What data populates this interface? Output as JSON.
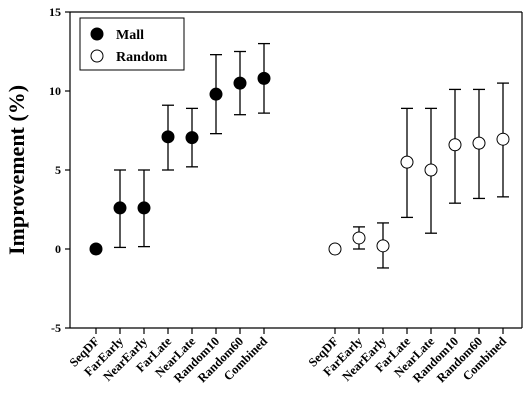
{
  "chart_data": {
    "type": "scatter",
    "ylabel": "Improvement (%)",
    "ylim": [
      -5,
      15
    ],
    "yticks": [
      -5,
      0,
      5,
      10,
      15
    ],
    "grid": false,
    "legend_position": "top-left",
    "series": [
      {
        "name": "Mall",
        "marker": "filled-circle",
        "color": "#000000",
        "categories": [
          "SeqDF",
          "FarEarly",
          "NearEarly",
          "FarLate",
          "NearLate",
          "Random10",
          "Random60",
          "Combined"
        ],
        "values": [
          0.0,
          2.6,
          2.6,
          7.1,
          7.05,
          9.8,
          10.5,
          10.8
        ],
        "err_low": [
          0.0,
          0.1,
          0.15,
          5.0,
          5.2,
          7.3,
          8.5,
          8.6
        ],
        "err_high": [
          0.0,
          5.0,
          5.0,
          9.1,
          8.9,
          12.3,
          12.5,
          13.0
        ]
      },
      {
        "name": "Random",
        "marker": "open-circle",
        "color": "#000000",
        "categories": [
          "SeqDF",
          "FarEarly",
          "NearEarly",
          "FarLate",
          "NearLate",
          "Random10",
          "Random60",
          "Combined"
        ],
        "values": [
          0.0,
          0.7,
          0.2,
          5.5,
          5.0,
          6.6,
          6.7,
          6.95
        ],
        "err_low": [
          0.0,
          0.0,
          -1.2,
          2.0,
          1.0,
          2.9,
          3.2,
          3.3
        ],
        "err_high": [
          0.0,
          1.4,
          1.65,
          8.9,
          8.9,
          10.1,
          10.1,
          10.5
        ]
      }
    ]
  }
}
